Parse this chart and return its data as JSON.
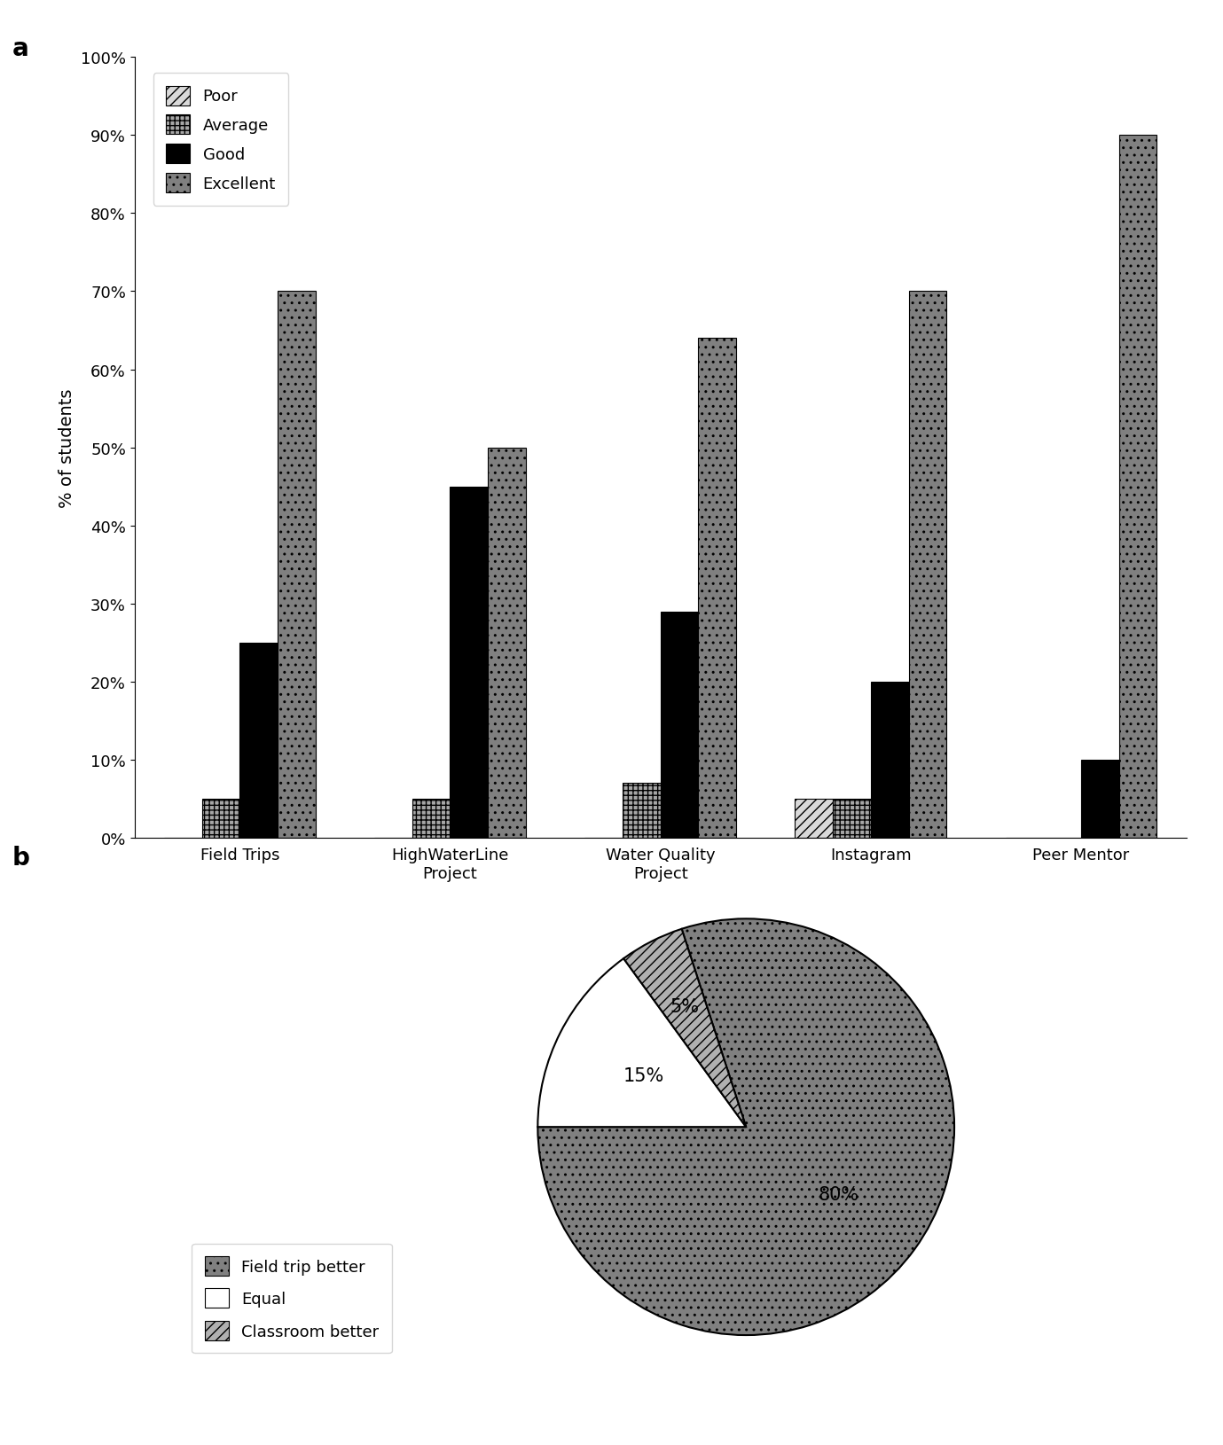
{
  "bar_categories": [
    "Field Trips",
    "HighWaterLine\nProject",
    "Water Quality\nProject",
    "Instagram",
    "Peer Mentor"
  ],
  "bar_series": {
    "Poor": [
      0,
      0,
      0,
      5,
      0
    ],
    "Average": [
      5,
      5,
      7,
      5,
      0
    ],
    "Good": [
      25,
      45,
      29,
      20,
      10
    ],
    "Excellent": [
      70,
      50,
      64,
      70,
      90
    ]
  },
  "bar_colors": {
    "Poor": "#d9d9d9",
    "Average": "#a6a6a6",
    "Good": "#000000",
    "Excellent": "#808080"
  },
  "bar_hatches": {
    "Poor": "///",
    "Average": "+++",
    "Good": "",
    "Excellent": ".."
  },
  "bar_ylabel": "% of students",
  "bar_ylim": [
    0,
    100
  ],
  "bar_yticks": [
    0,
    10,
    20,
    30,
    40,
    50,
    60,
    70,
    80,
    90,
    100
  ],
  "bar_ytick_labels": [
    "0%",
    "10%",
    "20%",
    "30%",
    "40%",
    "50%",
    "60%",
    "70%",
    "80%",
    "90%",
    "100%"
  ],
  "pie_values": [
    80,
    15,
    5
  ],
  "pie_labels": [
    "Field trip better",
    "Equal",
    "Classroom better"
  ],
  "pie_colors": [
    "#808080",
    "#ffffff",
    "#b0b0b0"
  ],
  "pie_hatches": [
    "..",
    "",
    "///"
  ],
  "pie_text_labels": [
    "80%",
    "15%",
    "5%"
  ],
  "label_a": "a",
  "label_b": "b"
}
